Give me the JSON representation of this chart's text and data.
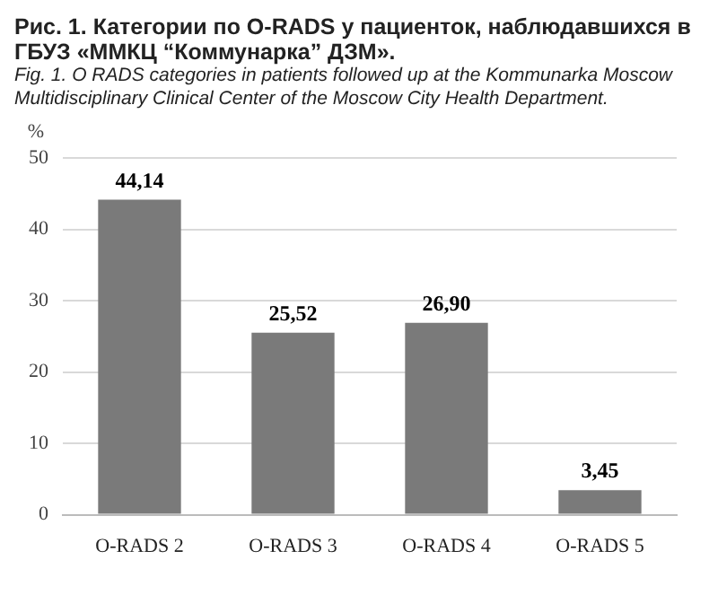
{
  "chart_data": {
    "type": "bar",
    "title": "Рис. 1. Категории по O-RADS у пациенток, наблюдавшихся в ГБУЗ «ММКЦ “Коммунарка” ДЗМ».",
    "subtitle": "Fig. 1. O RADS categories in patients followed up at the Kommunarka Moscow Multidisciplinary Clinical Center of the Moscow City Health Department.",
    "ylabel": "%",
    "categories": [
      "O-RADS 2",
      "O-RADS 3",
      "O-RADS 4",
      "O-RADS 5"
    ],
    "values": [
      44.14,
      25.52,
      26.9,
      3.45
    ],
    "value_labels": [
      "44,14",
      "25,52",
      "26,90",
      "3,45"
    ],
    "color": "#7a7a7a",
    "ylim": [
      0,
      50
    ],
    "yticks": [
      0,
      10,
      20,
      30,
      40,
      50
    ],
    "grid": "y"
  }
}
